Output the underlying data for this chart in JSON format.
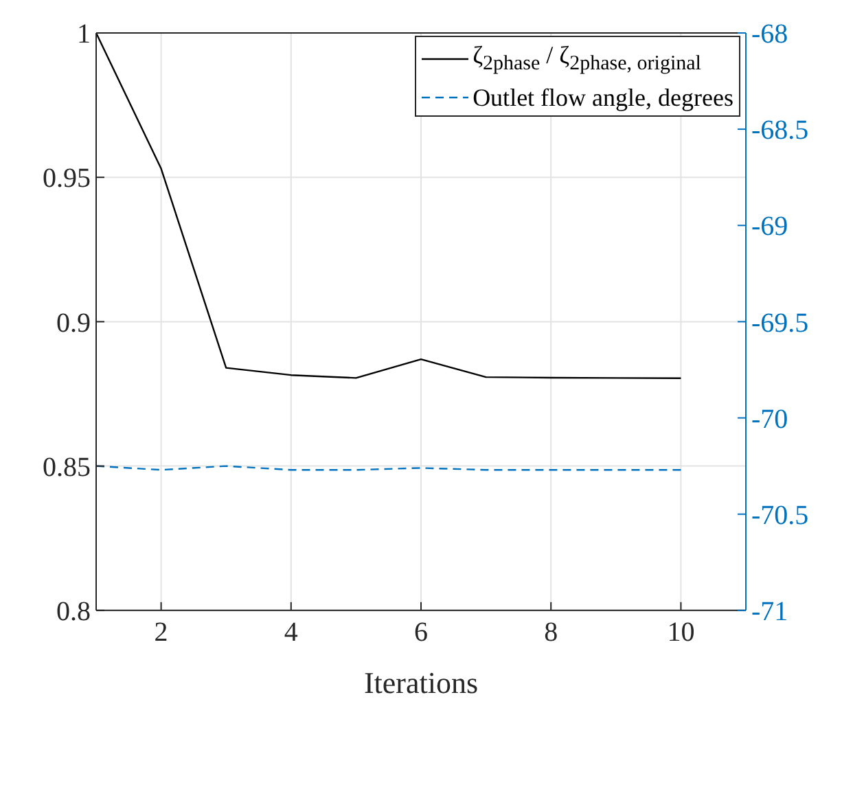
{
  "chart_data": {
    "type": "line",
    "xlabel": "Iterations",
    "x": [
      1,
      2,
      3,
      4,
      5,
      6,
      7,
      8,
      9,
      10
    ],
    "xlim": [
      1,
      11
    ],
    "xticks": [
      2,
      4,
      6,
      8,
      10
    ],
    "ylim": [
      0.8,
      1
    ],
    "yticks": [
      0.8,
      0.85,
      0.9,
      0.95,
      1
    ],
    "y2lim": [
      -71,
      -68
    ],
    "y2ticks": [
      -71,
      -70.5,
      -70,
      -69.5,
      -69,
      -68.5,
      -68
    ],
    "grid": true,
    "legend": "top right",
    "marker": "none",
    "series": [
      {
        "name": "ζ$_{2phase}$ / ζ$_{2phase, original}$",
        "color": "#000000",
        "line_style": "solid",
        "values": [
          1.0,
          0.953,
          0.884,
          0.8815,
          0.8805,
          0.887,
          0.8808,
          0.8806,
          0.8805,
          0.8804
        ]
      },
      {
        "name": "Outlet flow angle, degrees",
        "color": "#0072bd",
        "line_style": "dashed",
        "axis": "y2",
        "values": [
          -70.25,
          -70.27,
          -70.25,
          -70.27,
          -70.27,
          -70.26,
          -70.27,
          -70.27,
          -70.27,
          -70.27
        ]
      }
    ]
  }
}
